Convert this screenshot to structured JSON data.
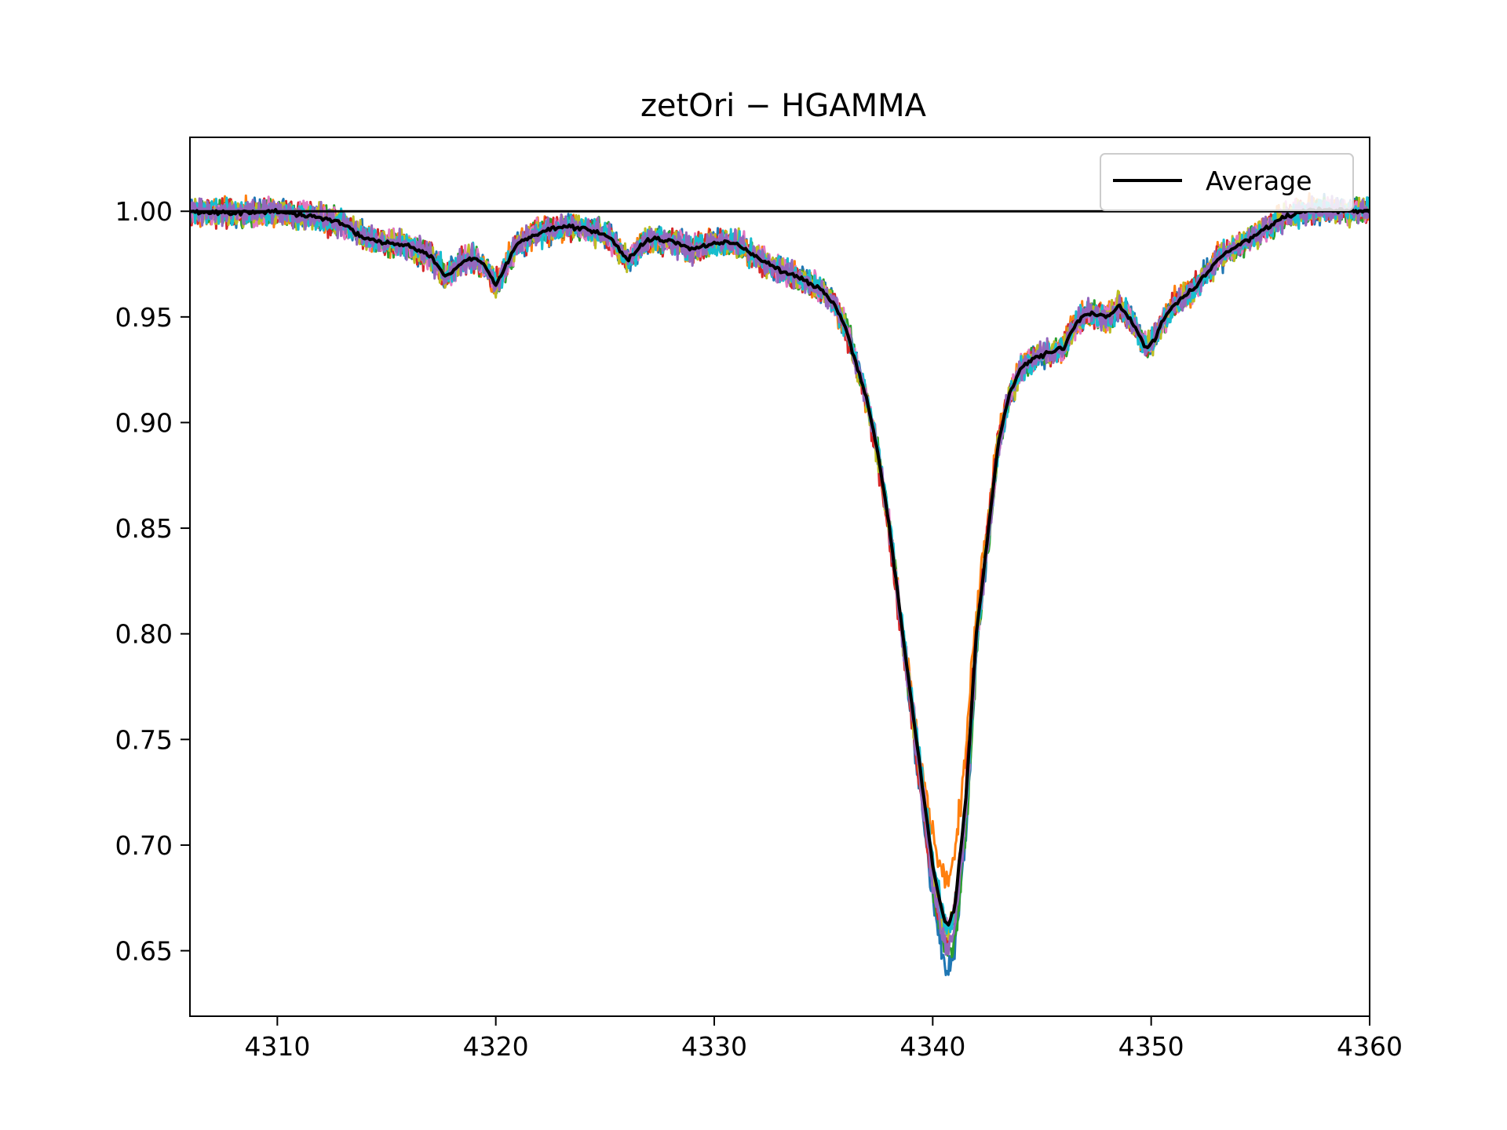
{
  "chart_data": {
    "type": "line",
    "title": "zetOri − HGAMMA",
    "xlabel": "",
    "ylabel": "",
    "xlim": [
      4306,
      4360
    ],
    "ylim": [
      0.619,
      1.035
    ],
    "x_ticks": [
      4310,
      4320,
      4330,
      4340,
      4350,
      4360
    ],
    "x_tick_labels": [
      "4310",
      "4320",
      "4330",
      "4340",
      "4350",
      "4360"
    ],
    "y_ticks": [
      0.65,
      0.7,
      0.75,
      0.8,
      0.85,
      0.9,
      0.95,
      1.0
    ],
    "y_tick_labels": [
      "0.65",
      "0.70",
      "0.75",
      "0.80",
      "0.85",
      "0.90",
      "0.95",
      "1.00"
    ],
    "grid": false,
    "legend": {
      "placement": "top-right",
      "entries": [
        "Average"
      ]
    },
    "reference_line": {
      "y": 1.0,
      "color": "#000000"
    },
    "average": {
      "name": "Average",
      "color": "#000000",
      "x": [
        4306,
        4308,
        4310,
        4312,
        4313,
        4314,
        4315,
        4316,
        4317,
        4317.7,
        4318.5,
        4319,
        4319.5,
        4320,
        4320.5,
        4321,
        4322,
        4323,
        4324,
        4325,
        4325.5,
        4326,
        4327,
        4328,
        4329,
        4330,
        4331,
        4332,
        4333,
        4334,
        4335,
        4335.5,
        4336,
        4336.5,
        4337,
        4337.5,
        4338,
        4338.5,
        4339,
        4339.5,
        4340,
        4340.5,
        4340.7,
        4341,
        4341.5,
        4342,
        4342.5,
        4343,
        4343.5,
        4344,
        4344.5,
        4345,
        4346,
        4346.5,
        4347,
        4348,
        4348.5,
        4349,
        4349.5,
        4349.8,
        4350.2,
        4350.5,
        4351,
        4352,
        4353,
        4354,
        4355,
        4356,
        4357,
        4358,
        4359,
        4360
      ],
      "y": [
        1.0,
        0.999,
        1.0,
        0.997,
        0.994,
        0.987,
        0.985,
        0.984,
        0.979,
        0.969,
        0.976,
        0.978,
        0.974,
        0.965,
        0.975,
        0.985,
        0.99,
        0.993,
        0.992,
        0.989,
        0.984,
        0.977,
        0.987,
        0.986,
        0.982,
        0.985,
        0.985,
        0.978,
        0.972,
        0.968,
        0.962,
        0.956,
        0.945,
        0.928,
        0.91,
        0.885,
        0.852,
        0.81,
        0.77,
        0.73,
        0.69,
        0.665,
        0.662,
        0.67,
        0.72,
        0.8,
        0.845,
        0.89,
        0.913,
        0.925,
        0.93,
        0.932,
        0.935,
        0.946,
        0.952,
        0.95,
        0.955,
        0.95,
        0.94,
        0.935,
        0.94,
        0.948,
        0.955,
        0.964,
        0.977,
        0.984,
        0.99,
        0.997,
        1.0,
        1.001,
        1.0,
        1.0
      ]
    },
    "observation_series_colors": [
      "#1f77b4",
      "#ff7f0e",
      "#2ca02c",
      "#d62728",
      "#e377c2",
      "#bcbd22",
      "#17becf",
      "#9467bd"
    ],
    "observation_series_minima": [
      0.64,
      0.684,
      0.648,
      0.655,
      0.66,
      0.658,
      0.662,
      0.652
    ]
  }
}
